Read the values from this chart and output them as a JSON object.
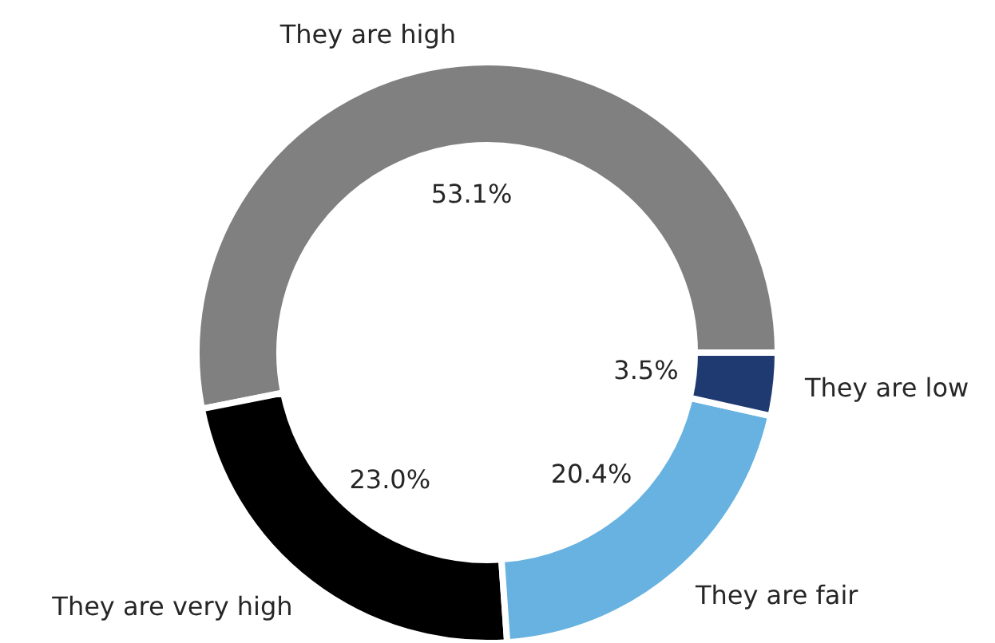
{
  "chart_data": {
    "type": "donut",
    "categories": [
      "They are high",
      "They are very high",
      "They are fair",
      "They are low"
    ],
    "values": [
      53.1,
      23.0,
      20.4,
      3.5
    ],
    "colors": [
      "#808080",
      "#000000",
      "#67b2e0",
      "#1f3a70"
    ],
    "value_labels": [
      "53.1%",
      "23.0%",
      "20.4%",
      "3.5%"
    ]
  }
}
